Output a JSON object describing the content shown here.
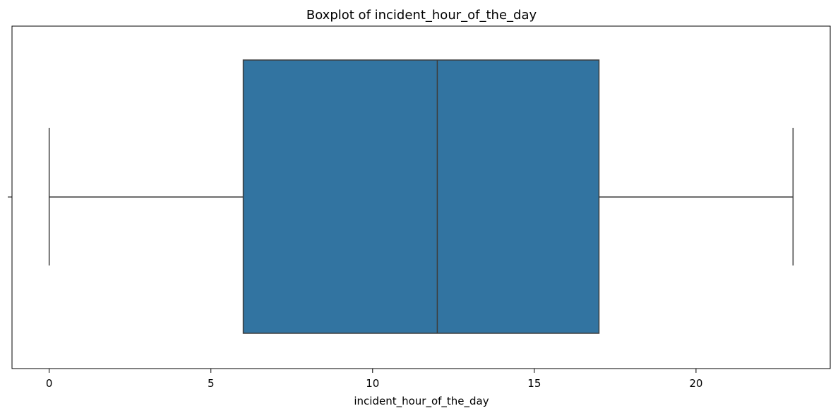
{
  "chart_data": {
    "type": "boxplot",
    "title": "Boxplot of incident_hour_of_the_day",
    "xlabel": "incident_hour_of_the_day",
    "ylabel": "",
    "orientation": "horizontal",
    "xlim": [
      -1.15,
      24.15
    ],
    "x_ticks": [
      0,
      5,
      10,
      15,
      20
    ],
    "x_tick_labels": [
      "0",
      "5",
      "10",
      "15",
      "20"
    ],
    "grid": false,
    "box": {
      "whisker_low": 0,
      "q1": 6,
      "median": 12,
      "q3": 17,
      "whisker_high": 23,
      "fill_color": "#3274a1",
      "line_color": "#3d3d3d"
    }
  }
}
